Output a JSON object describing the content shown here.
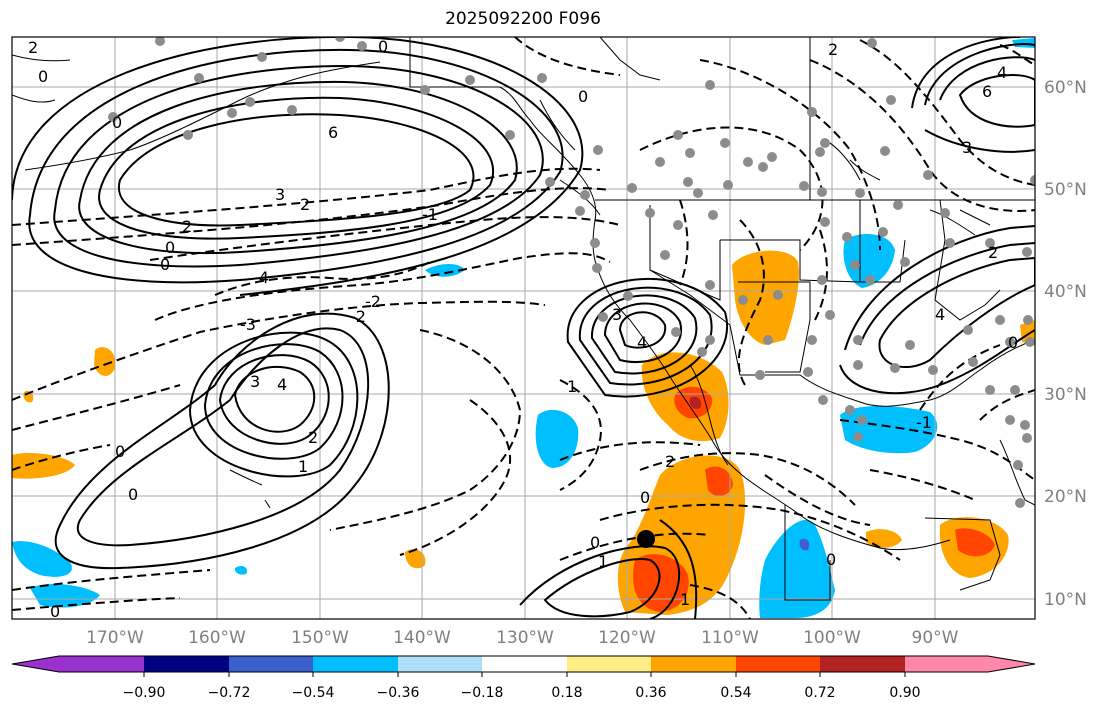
{
  "title": "2025092200 F096",
  "map": {
    "longitude_labels": [
      "170°W",
      "160°W",
      "150°W",
      "140°W",
      "130°W",
      "120°W",
      "110°W",
      "100°W",
      "90°W"
    ],
    "latitude_labels": [
      "60°N",
      "50°N",
      "40°N",
      "30°N",
      "20°N",
      "10°N"
    ],
    "contour_labels": [
      "2",
      "0",
      "0",
      "0",
      "6",
      "3",
      "2",
      "2",
      "0",
      "0",
      "-4",
      "-3",
      "-2",
      "-1",
      "-2",
      "2",
      "3",
      "4",
      "1",
      "0",
      "0",
      "0",
      "1",
      "3",
      "4",
      "2",
      "0",
      "0",
      "3",
      "6",
      "4",
      "2",
      "4",
      "0",
      "1",
      "0",
      "-1",
      "1",
      "2",
      "0"
    ],
    "colors": {
      "orange": "#ffa500",
      "red_orange": "#ff4500",
      "firebrick": "#b22222",
      "deep_sky_blue": "#00bfff",
      "light_blue": "#add8e6",
      "royal_blue": "#3f5fcf",
      "grid": "#a9a9a9",
      "station": "#8c8c8c"
    }
  },
  "colorbar": {
    "tick_labels": [
      "−0.90",
      "−0.72",
      "−0.54",
      "−0.36",
      "−0.18",
      "0.18",
      "0.36",
      "0.54",
      "0.72",
      "0.90"
    ],
    "colors": [
      "#9932cc",
      "#000080",
      "#3a5fcd",
      "#00bfff",
      "#b0e0f8",
      "#ffffff",
      "#ffee88",
      "#ffa500",
      "#ff4500",
      "#b22222",
      "#ff88aa"
    ]
  }
}
